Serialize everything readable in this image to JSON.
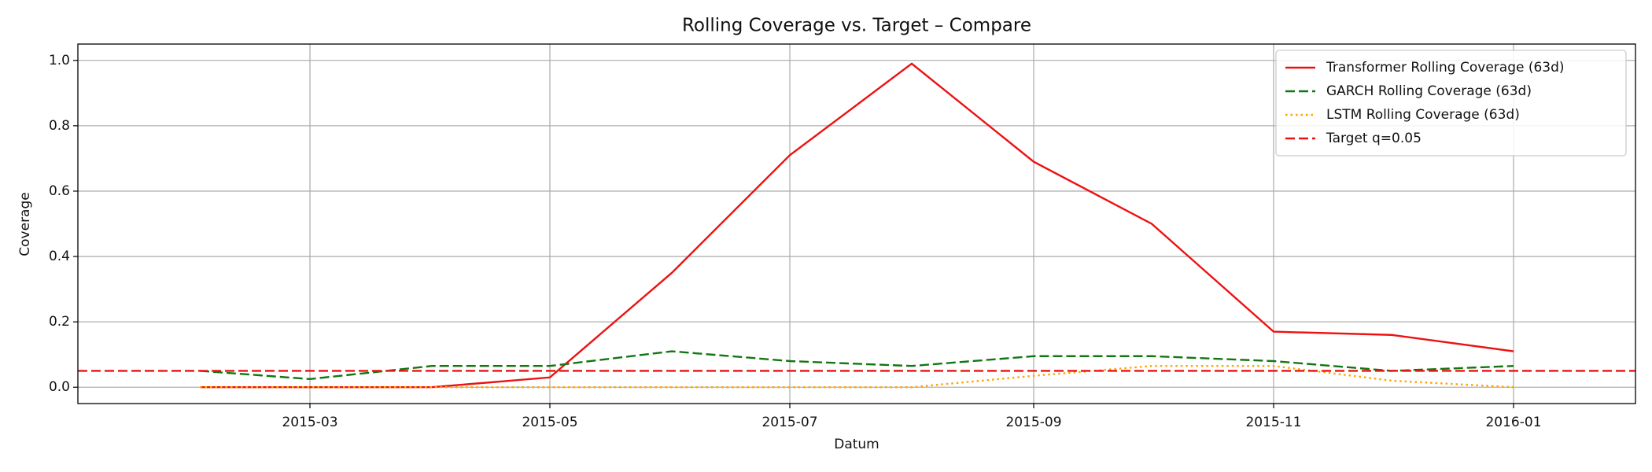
{
  "chart_data": {
    "type": "line",
    "title": "Rolling Coverage vs. Target – Compare",
    "xlabel": "Datum",
    "ylabel": "Coverage",
    "x": [
      "2015-02",
      "2015-03",
      "2015-04",
      "2015-05",
      "2015-06",
      "2015-07",
      "2015-08",
      "2015-09",
      "2015-10",
      "2015-11",
      "2015-12",
      "2016-01"
    ],
    "series": [
      {
        "name": "Transformer Rolling Coverage (63d)",
        "color": "#ee1111",
        "dash": "solid",
        "values": [
          0,
          0,
          0,
          0.03,
          0.35,
          0.71,
          0.99,
          0.69,
          0.5,
          0.17,
          0.16,
          0.11
        ]
      },
      {
        "name": "GARCH Rolling Coverage (63d)",
        "color": "#117711",
        "dash": "dashed",
        "values": [
          0.05,
          0.025,
          0.065,
          0.065,
          0.11,
          0.08,
          0.065,
          0.095,
          0.095,
          0.08,
          0.05,
          0.065
        ]
      },
      {
        "name": "LSTM Rolling Coverage (63d)",
        "color": "#ffa500",
        "dash": "dotted",
        "values": [
          0,
          0,
          0,
          0,
          0,
          0,
          0,
          0.035,
          0.065,
          0.065,
          0.02,
          0
        ]
      }
    ],
    "hline": {
      "name": "Target q=0.05",
      "value": 0.05,
      "color": "#ee1111",
      "dash": "dashed"
    },
    "xlim": [
      "2015-01",
      "2016-02"
    ],
    "xticks": [
      "2015-03",
      "2015-05",
      "2015-07",
      "2015-09",
      "2015-11",
      "2016-01"
    ],
    "ylim": [
      -0.05,
      1.05
    ],
    "yticks": [
      {
        "value": 0,
        "label": "0.0"
      },
      {
        "value": 0.2,
        "label": "0.2"
      },
      {
        "value": 0.4,
        "label": "0.4"
      },
      {
        "value": 0.6,
        "label": "0.6"
      },
      {
        "value": 0.8,
        "label": "0.8"
      },
      {
        "value": 1,
        "label": "1.0"
      }
    ],
    "grid": true,
    "legend": "upper right"
  }
}
